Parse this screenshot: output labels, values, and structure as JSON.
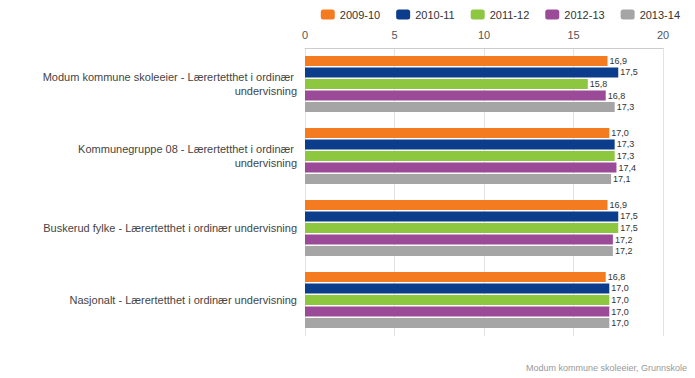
{
  "chart_data": {
    "type": "bar",
    "orientation": "horizontal",
    "categories": [
      "Modum kommune skoleeier - Lærertetthet i ordinær undervisning",
      "Kommunegruppe 08 - Lærertetthet i ordinær undervisning",
      "Buskerud fylke - Lærertetthet i ordinær undervisning",
      "Nasjonalt - Lærertetthet i ordinær undervisning"
    ],
    "series": [
      {
        "name": "2009-10",
        "color": "#f47b20",
        "values": [
          16.9,
          17.0,
          16.9,
          16.8
        ],
        "value_labels": [
          "16,9",
          "17,0",
          "16,9",
          "16,8"
        ]
      },
      {
        "name": "2010-11",
        "color": "#0b3d8c",
        "values": [
          17.5,
          17.3,
          17.5,
          17.0
        ],
        "value_labels": [
          "17,5",
          "17,3",
          "17,5",
          "17,0"
        ]
      },
      {
        "name": "2011-12",
        "color": "#8dc63f",
        "values": [
          15.8,
          17.3,
          17.5,
          17.0
        ],
        "value_labels": [
          "15,8",
          "17,3",
          "17,5",
          "17,0"
        ]
      },
      {
        "name": "2012-13",
        "color": "#9b4a97",
        "values": [
          16.8,
          17.4,
          17.2,
          17.0
        ],
        "value_labels": [
          "16,8",
          "17,4",
          "17,2",
          "17,0"
        ]
      },
      {
        "name": "2013-14",
        "color": "#a5a5a5",
        "values": [
          17.3,
          17.1,
          17.2,
          17.0
        ],
        "value_labels": [
          "17,3",
          "17,1",
          "17,2",
          "17,0"
        ]
      }
    ],
    "xlim": [
      0,
      20
    ],
    "xticks": [
      0,
      5,
      10,
      15,
      20
    ],
    "grid": true,
    "legend": "top-right",
    "data_labels": true,
    "annotations": [
      "Modum kommune skoleeier, Grunnskole"
    ]
  }
}
